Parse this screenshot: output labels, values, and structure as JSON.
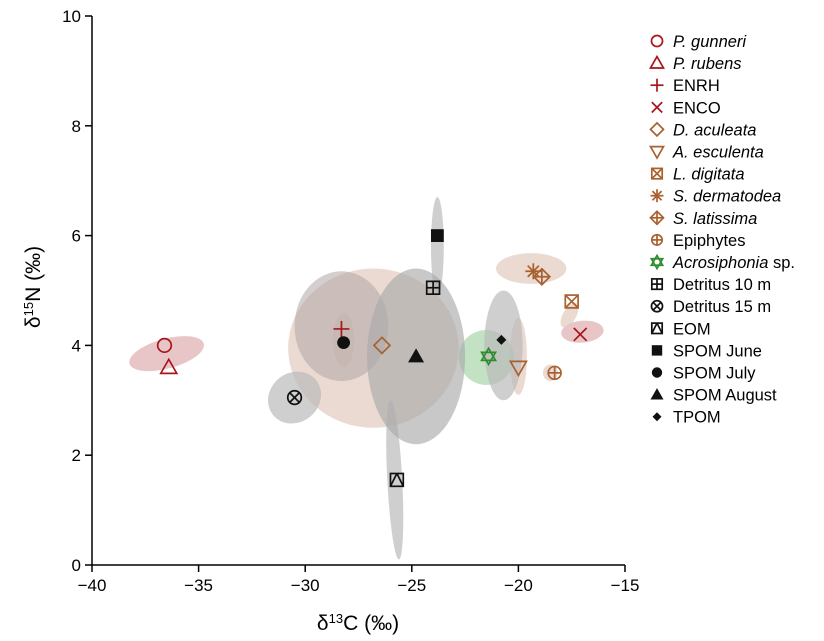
{
  "chart_data": {
    "type": "scatter",
    "xlabel": {
      "prefix": "δ",
      "sup": "13",
      "main": "C (‰)"
    },
    "ylabel": {
      "prefix": "δ",
      "sup": "15",
      "main": "N (‰)"
    },
    "xlim": [
      -40,
      -15
    ],
    "ylim": [
      0,
      10
    ],
    "xticks": [
      -40,
      -35,
      -30,
      -25,
      -20,
      -15
    ],
    "yticks": [
      0,
      2,
      4,
      6,
      8,
      10
    ],
    "grid": false,
    "legend_position": "right",
    "series": [
      {
        "name": "P. gunneri",
        "italic": true,
        "marker": "circle",
        "color": "#a8161c",
        "x": -36.6,
        "y": 4.0
      },
      {
        "name": "P. rubens",
        "italic": true,
        "marker": "triangle",
        "color": "#a8161c",
        "x": -36.4,
        "y": 3.6
      },
      {
        "name": "ENRH",
        "italic": false,
        "marker": "plus",
        "color": "#a8161c",
        "x": -28.3,
        "y": 4.3
      },
      {
        "name": "ENCO",
        "italic": false,
        "marker": "x",
        "color": "#a8161c",
        "x": -17.1,
        "y": 4.2
      },
      {
        "name": "D. aculeata",
        "italic": true,
        "marker": "diamond",
        "color": "#a8612f",
        "x": -26.4,
        "y": 4.0
      },
      {
        "name": "A. esculenta",
        "italic": true,
        "marker": "triangle-down",
        "color": "#a8612f",
        "x": -20.0,
        "y": 3.6
      },
      {
        "name": "L. digitata",
        "italic": true,
        "marker": "square-x",
        "color": "#a8612f",
        "x": -17.5,
        "y": 4.8
      },
      {
        "name": "S. dermatodea",
        "italic": true,
        "marker": "asterisk",
        "color": "#a8612f",
        "x": -19.3,
        "y": 5.35
      },
      {
        "name": "S. latissima",
        "italic": true,
        "marker": "diamond-plus",
        "color": "#a8612f",
        "x": -18.9,
        "y": 5.25
      },
      {
        "name": "Epiphytes",
        "italic": false,
        "marker": "circle-plus",
        "color": "#a8612f",
        "x": -18.3,
        "y": 3.5
      },
      {
        "name": "Acrosiphonia",
        "suffix": " sp.",
        "italic": true,
        "marker": "star-of-david",
        "color": "#2e8b2e",
        "x": -21.4,
        "y": 3.8
      },
      {
        "name": "Detritus 10 m",
        "italic": false,
        "marker": "square-plus",
        "color": "#111111",
        "x": -24.0,
        "y": 5.05
      },
      {
        "name": "Detritus 15 m",
        "italic": false,
        "marker": "circle-x",
        "color": "#111111",
        "x": -30.5,
        "y": 3.05
      },
      {
        "name": "EOM",
        "italic": false,
        "marker": "square-slash",
        "color": "#111111",
        "x": -25.7,
        "y": 1.55
      },
      {
        "name": "SPOM June",
        "italic": false,
        "marker": "square-filled",
        "color": "#111111",
        "x": -23.8,
        "y": 6.0
      },
      {
        "name": "SPOM July",
        "italic": false,
        "marker": "circle-filled",
        "color": "#111111",
        "x": -28.2,
        "y": 4.05
      },
      {
        "name": "SPOM August",
        "italic": false,
        "marker": "triangle-filled",
        "color": "#111111",
        "x": -24.8,
        "y": 3.8
      },
      {
        "name": "TPOM",
        "italic": false,
        "marker": "diamond-filled",
        "color": "#111111",
        "x": -20.8,
        "y": 4.1
      }
    ],
    "ellipses": [
      {
        "cx": -36.5,
        "cy": 3.85,
        "rx": 0.7,
        "ry": 0.7,
        "angle": 75,
        "color": "#d9a0a3",
        "opacity": 0.6
      },
      {
        "cx": -28.2,
        "cy": 4.1,
        "rx": 0.5,
        "ry": 0.5,
        "angle": 0,
        "color": "#c9a0a0",
        "opacity": 0.5
      },
      {
        "cx": -17.0,
        "cy": 4.25,
        "rx": 1.0,
        "ry": 0.2,
        "angle": -5,
        "color": "#d9a0a3",
        "opacity": 0.6
      },
      {
        "cx": -26.8,
        "cy": 3.95,
        "rx": 4.0,
        "ry": 1.45,
        "angle": 0,
        "color": "#e3cbbe",
        "opacity": 0.7
      },
      {
        "cx": -20.0,
        "cy": 3.8,
        "rx": 0.4,
        "ry": 0.7,
        "angle": 0,
        "color": "#e3cbbe",
        "opacity": 0.7
      },
      {
        "cx": -17.6,
        "cy": 4.55,
        "rx": 0.65,
        "ry": 0.12,
        "angle": -60,
        "color": "#e3cbbe",
        "opacity": 0.7
      },
      {
        "cx": -19.4,
        "cy": 5.4,
        "rx": 1.65,
        "ry": 0.28,
        "angle": 0,
        "color": "#e3cbbe",
        "opacity": 0.7
      },
      {
        "cx": -18.5,
        "cy": 3.5,
        "rx": 0.35,
        "ry": 0.15,
        "angle": 0,
        "color": "#e3cbbe",
        "opacity": 0.7
      },
      {
        "cx": -21.5,
        "cy": 3.78,
        "rx": 1.3,
        "ry": 0.5,
        "angle": 25,
        "color": "#a9d4a9",
        "opacity": 0.7
      },
      {
        "cx": -23.8,
        "cy": 5.8,
        "rx": 0.3,
        "ry": 0.9,
        "angle": 0,
        "color": "#bbbbbb",
        "opacity": 0.7
      },
      {
        "cx": -30.5,
        "cy": 3.05,
        "rx": 1.3,
        "ry": 0.45,
        "angle": -40,
        "color": "#bbbbbb",
        "opacity": 0.7
      },
      {
        "cx": -25.8,
        "cy": 1.55,
        "rx": 0.35,
        "ry": 1.45,
        "angle": -3,
        "color": "#bbbbbb",
        "opacity": 0.7
      },
      {
        "cx": -28.3,
        "cy": 4.35,
        "rx": 2.2,
        "ry": 1.0,
        "angle": 0,
        "color": "#b0a8a8",
        "opacity": 0.55
      },
      {
        "cx": -24.8,
        "cy": 3.8,
        "rx": 2.3,
        "ry": 1.6,
        "angle": 0,
        "color": "#aaaaaa",
        "opacity": 0.65
      },
      {
        "cx": -20.7,
        "cy": 4.0,
        "rx": 0.9,
        "ry": 1.0,
        "angle": 0,
        "color": "#bbbbbb",
        "opacity": 0.7
      }
    ]
  }
}
